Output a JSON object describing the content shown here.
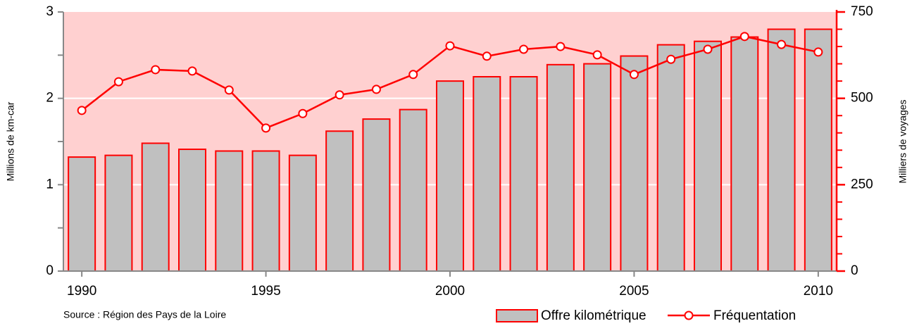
{
  "chart_data": {
    "type": "bar_line",
    "y_label": "Millions de km-car",
    "y2_label": "Milliers de voyages",
    "source": "Source : Région des Pays de la Loire",
    "categories": [
      "1990",
      null,
      null,
      null,
      null,
      "1995",
      null,
      null,
      null,
      null,
      "2000",
      null,
      null,
      null,
      null,
      "2005",
      null,
      null,
      null,
      null,
      "2010"
    ],
    "series": [
      {
        "name": "Offre kilométrique",
        "type": "bar",
        "color": "#c0c0c0",
        "edge_color": "#ff0000",
        "values": [
          1.32,
          1.34,
          1.48,
          1.41,
          1.39,
          1.39,
          1.34,
          1.62,
          1.76,
          1.87,
          2.2,
          2.25,
          2.25,
          2.39,
          2.4,
          2.49,
          2.62,
          2.66,
          2.71,
          2.8,
          2.8
        ]
      },
      {
        "name": "Fréquentation",
        "type": "line",
        "axis": "y2",
        "color": "#ff0000",
        "values": [
          465,
          548,
          583,
          579,
          524,
          414,
          456,
          510,
          526,
          569,
          652,
          622,
          642,
          650,
          626,
          569,
          613,
          642,
          679,
          656,
          634
        ]
      }
    ],
    "ylim": [
      0,
      3
    ],
    "yticks": [
      0,
      1,
      2,
      3
    ],
    "yminorticks": [
      0.5,
      1.5,
      2.5
    ],
    "y2lim": [
      0,
      750
    ],
    "y2ticks": [
      0,
      250,
      500,
      750
    ],
    "y2minorticks": [
      50,
      100,
      150,
      200,
      300,
      350,
      400,
      450,
      550,
      600,
      650,
      700
    ],
    "grid": true,
    "background": "#ffd0d0"
  }
}
